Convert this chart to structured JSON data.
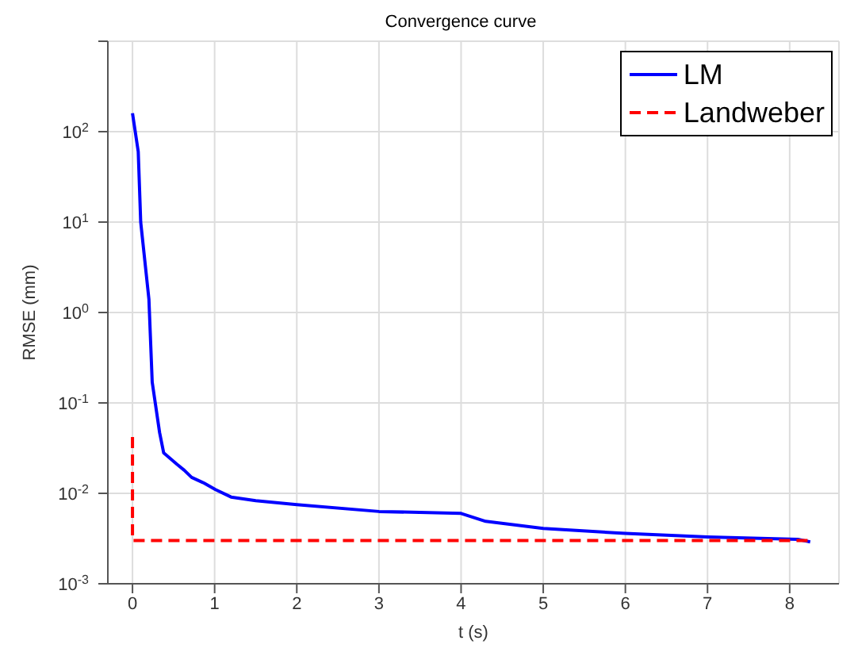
{
  "chart_data": {
    "type": "line",
    "title": "Convergence curve",
    "xlabel": "t (s)",
    "ylabel": "RMSE (mm)",
    "log": "y",
    "grid": true,
    "legend": "top right",
    "xlim": [
      -0.3,
      8.6
    ],
    "xticks": [
      0,
      1,
      2,
      3,
      4,
      5,
      6,
      7,
      8
    ],
    "ylim": [
      0.001,
      1000
    ],
    "yticks": [
      {
        "value": 0.001,
        "label": "10$^{-3}$"
      },
      {
        "value": 0.01,
        "label": "10$^{-2}$"
      },
      {
        "value": 0.1,
        "label": "10$^{-1}$"
      },
      {
        "value": 1,
        "label": "10$^{0}$"
      },
      {
        "value": 10,
        "label": "10$^{1}$"
      },
      {
        "value": 100,
        "label": "10$^{2}$"
      },
      {
        "value": 1000,
        "label": null
      }
    ],
    "series": [
      {
        "name": "LM",
        "color": "#0000ff",
        "line_style": "solid",
        "x": [
          0,
          0.07,
          0.1,
          0.2,
          0.24,
          0.33,
          0.38,
          0.54,
          0.63,
          0.72,
          0.87,
          1.01,
          1.2,
          1.5,
          2,
          3,
          4,
          4.3,
          5,
          6,
          7,
          8.1,
          8.25
        ],
        "values": [
          160,
          60,
          10,
          1.4,
          0.17,
          0.047,
          0.028,
          0.021,
          0.018,
          0.015,
          0.013,
          0.011,
          0.0091,
          0.0083,
          0.0075,
          0.0063,
          0.006,
          0.0049,
          0.0041,
          0.0036,
          0.0033,
          0.0031,
          0.0029
        ]
      },
      {
        "name": "Landweber",
        "color": "#ff0000",
        "line_style": "dashed",
        "x": [
          0,
          0,
          8.25
        ],
        "values": [
          0.042,
          0.003,
          0.003
        ]
      }
    ]
  }
}
